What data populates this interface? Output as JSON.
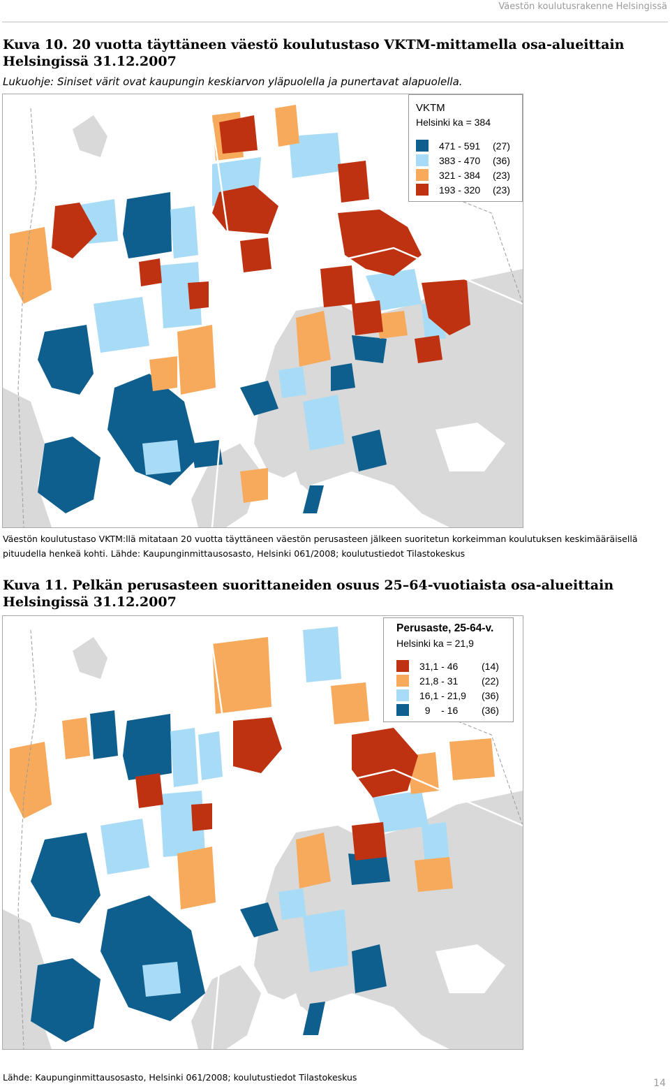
{
  "running_header": "Väestön koulutusrakenne Helsingissä",
  "figure1": {
    "title": "Kuva 10. 20 vuotta täyttäneen väestö koulutustaso VKTM-mittamella osa-alueittain Helsingissä 31.12.2007",
    "instruction": "Lukuohje: Siniset värit ovat kaupungin keskiarvon yläpuolella ja punertavat alapuolella.",
    "legend": {
      "title": "VKTM",
      "subtitle": "Helsinki ka = 384",
      "classes": [
        {
          "range": "471 - 591",
          "count": "(27)",
          "color": "#0e5f8e"
        },
        {
          "range": "383 - 470",
          "count": "(36)",
          "color": "#a8dcf6"
        },
        {
          "range": "321 - 384",
          "count": "(23)",
          "color": "#f7aa5c"
        },
        {
          "range": "193 - 320",
          "count": "(23)",
          "color": "#be3212"
        }
      ]
    },
    "caption": "Väestön koulutustaso VKTM:llä mitataan 20 vuotta täyttäneen väestön perusasteen jälkeen suoritetun korkeimman koulutuksen keskimääräisellä pituudella henkeä kohti. Lähde: Kaupunginmittausosasto, Helsinki 061/2008; koulutustiedot Tilastokeskus"
  },
  "figure2": {
    "title": "Kuva 11. Pelkän perusasteen suorittaneiden osuus 25–64-vuotiaista osa-alueittain Helsingissä 31.12.2007",
    "legend": {
      "title": "Perusaste, 25-64-v.",
      "subtitle": "Helsinki ka = 21,9",
      "classes": [
        {
          "range": "31,1 - 46",
          "count": "(14)",
          "color": "#be3212"
        },
        {
          "range": "21,8 - 31",
          "count": "(22)",
          "color": "#f7aa5c"
        },
        {
          "range": "16,1 - 21,9",
          "count": "(36)",
          "color": "#a8dcf6"
        },
        {
          "range": "  9    - 16",
          "count": "(36)",
          "color": "#0e5f8e"
        }
      ]
    },
    "source": "Lähde: Kaupunginmittausosasto, Helsinki 061/2008; koulutustiedot Tilastokeskus"
  },
  "page_number": "14"
}
